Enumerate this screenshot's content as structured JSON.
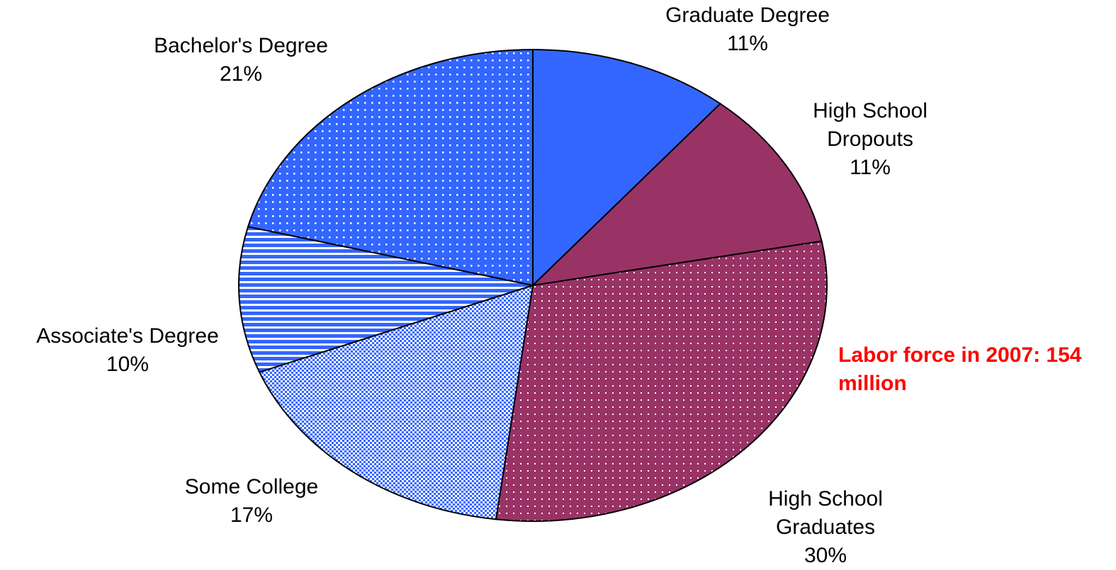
{
  "chart_data": {
    "type": "pie",
    "categories": [
      "Graduate Degree",
      "High School Dropouts",
      "High School Graduates",
      "Some College",
      "Associate's Degree",
      "Bachelor's Degree"
    ],
    "values": [
      11,
      11,
      30,
      17,
      10,
      21
    ],
    "value_labels": [
      "11%",
      "11%",
      "30%",
      "17%",
      "10%",
      "21%"
    ],
    "colors": [
      "#3366ff",
      "#993366",
      "#993366",
      "#3366ff",
      "#3366ff",
      "#3366ff"
    ],
    "patterns": [
      "solid",
      "solid",
      "dots",
      "checks",
      "stripes",
      "dots"
    ],
    "annotation": "Labor force in 2007: 154 million"
  }
}
